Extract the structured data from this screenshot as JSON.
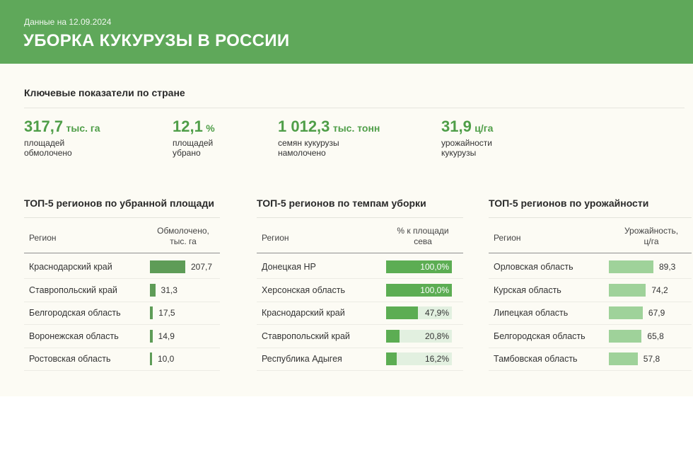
{
  "header": {
    "date": "Данные на 12.09.2024",
    "title": "УБОРКА КУКУРУЗЫ В РОССИИ"
  },
  "kpi": {
    "heading": "Ключевые показатели по стране",
    "items": [
      {
        "value": "317,7",
        "unit": "тыс. га",
        "desc": "площадей обмолочено"
      },
      {
        "value": "12,1",
        "unit": "%",
        "desc": "площадей убрано"
      },
      {
        "value": "1 012,3",
        "unit": "тыс. тонн",
        "desc": "семян кукурузы намолочено"
      },
      {
        "value": "31,9",
        "unit": "ц/га",
        "desc": "урожайности кукурузы"
      }
    ]
  },
  "colors": {
    "header_bg": "#5fa85a",
    "bar_dark": "#5e9c57",
    "bar_green": "#5cad53",
    "bar_light": "#9fd29a",
    "track": "#e2f0e0",
    "accent_text": "#4f9e48"
  },
  "chart_data": [
    {
      "type": "bar",
      "title": "ТОП-5 регионов по убранной площади",
      "column_region": "Регион",
      "column_metric": "Обмолочено,\nтыс. га",
      "categories": [
        "Краснодарский край",
        "Ставропольский край",
        "Белгородская область",
        "Воронежская область",
        "Ростовская область"
      ],
      "values": [
        207.7,
        31.3,
        17.5,
        14.9,
        10.0
      ],
      "labels": [
        "207,7",
        "31,3",
        "17,5",
        "14,9",
        "10,0"
      ],
      "xlim": [
        0,
        207.7
      ]
    },
    {
      "type": "bar",
      "title": "ТОП-5 регионов по темпам уборки",
      "column_region": "Регион",
      "column_metric": "% к площади\nсева",
      "categories": [
        "Донецкая НР",
        "Херсонская область",
        "Краснодарский край",
        "Ставропольский край",
        "Республика Адыгея"
      ],
      "values": [
        100.0,
        100.0,
        47.9,
        20.8,
        16.2
      ],
      "labels": [
        "100,0%",
        "100,0%",
        "47,9%",
        "20,8%",
        "16,2%"
      ],
      "xlim": [
        0,
        100
      ]
    },
    {
      "type": "bar",
      "title": "ТОП-5 регионов по урожайности",
      "column_region": "Регион",
      "column_metric": "Урожайность,\nц/га",
      "categories": [
        "Орловская область",
        "Курская область",
        "Липецкая область",
        "Белгородская область",
        "Тамбовская область"
      ],
      "values": [
        89.3,
        74.2,
        67.9,
        65.8,
        57.8
      ],
      "labels": [
        "89,3",
        "74,2",
        "67,9",
        "65,8",
        "57,8"
      ],
      "xlim": [
        0,
        89.3
      ]
    }
  ]
}
